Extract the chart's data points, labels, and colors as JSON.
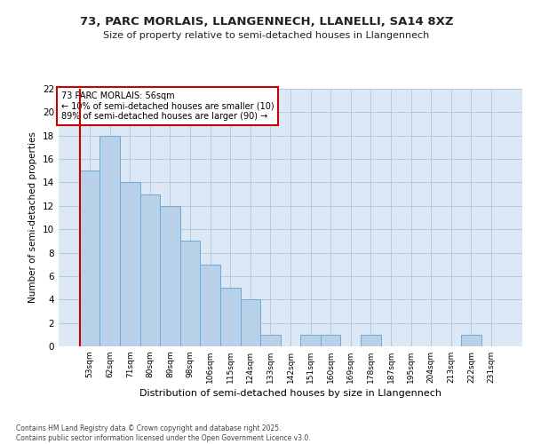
{
  "title_line1": "73, PARC MORLAIS, LLANGENNECH, LLANELLI, SA14 8XZ",
  "title_line2": "Size of property relative to semi-detached houses in Llangennech",
  "xlabel": "Distribution of semi-detached houses by size in Llangennech",
  "ylabel": "Number of semi-detached properties",
  "categories": [
    "53sqm",
    "62sqm",
    "71sqm",
    "80sqm",
    "89sqm",
    "98sqm",
    "106sqm",
    "115sqm",
    "124sqm",
    "133sqm",
    "142sqm",
    "151sqm",
    "160sqm",
    "169sqm",
    "178sqm",
    "187sqm",
    "195sqm",
    "204sqm",
    "213sqm",
    "222sqm",
    "231sqm"
  ],
  "values": [
    15,
    18,
    14,
    13,
    12,
    9,
    7,
    5,
    4,
    1,
    0,
    1,
    1,
    0,
    1,
    0,
    0,
    0,
    0,
    1,
    0
  ],
  "bar_color": "#b8d0e8",
  "bar_edge_color": "#6aaad4",
  "highlight_index": 0,
  "highlight_edge_color": "#cc0000",
  "annotation_box_text": "73 PARC MORLAIS: 56sqm\n← 10% of semi-detached houses are smaller (10)\n89% of semi-detached houses are larger (90) →",
  "annotation_box_color": "#ffffff",
  "annotation_box_edge_color": "#cc0000",
  "footer_line1": "Contains HM Land Registry data © Crown copyright and database right 2025.",
  "footer_line2": "Contains public sector information licensed under the Open Government Licence v3.0.",
  "ylim": [
    0,
    22
  ],
  "yticks": [
    0,
    2,
    4,
    6,
    8,
    10,
    12,
    14,
    16,
    18,
    20,
    22
  ],
  "background_color": "#ffffff",
  "plot_bg_color": "#dce8f5",
  "grid_color": "#b0c4d8"
}
